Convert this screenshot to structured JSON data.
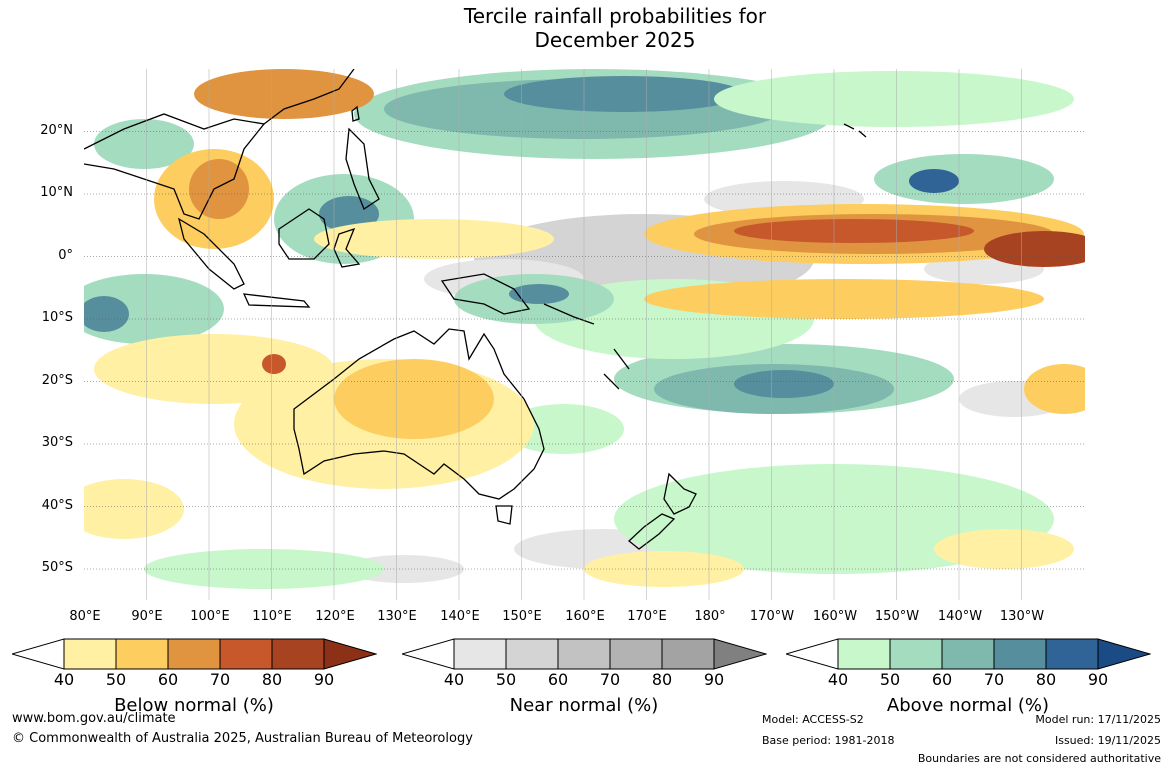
{
  "title_line1": "Tercile rainfall probabilities for",
  "title_line2": "December 2025",
  "lat_labels": [
    "20°N",
    "10°N",
    "0°",
    "10°S",
    "20°S",
    "30°S",
    "40°S",
    "50°S"
  ],
  "lon_labels": [
    "80°E",
    "90°E",
    "100°E",
    "110°E",
    "120°E",
    "130°E",
    "140°E",
    "150°E",
    "160°E",
    "170°E",
    "180°",
    "170°W",
    "160°W",
    "150°W",
    "140°W",
    "130°W"
  ],
  "colorbars": [
    {
      "title": "Below normal (%)",
      "ticks": [
        "40",
        "50",
        "60",
        "70",
        "80",
        "90"
      ],
      "colors": [
        "#fff0a3",
        "#fdcd60",
        "#e0943f",
        "#c6582c",
        "#a84321",
        "#8c3118"
      ]
    },
    {
      "title": "Near normal (%)",
      "ticks": [
        "40",
        "50",
        "60",
        "70",
        "80",
        "90"
      ],
      "colors": [
        "#e6e6e6",
        "#d4d4d4",
        "#c2c2c2",
        "#b3b3b3",
        "#a3a3a3",
        "#808080"
      ]
    },
    {
      "title": "Above normal (%)",
      "ticks": [
        "40",
        "50",
        "60",
        "70",
        "80",
        "90"
      ],
      "colors": [
        "#c8f7cb",
        "#a4dcc0",
        "#7fb9ad",
        "#568e9d",
        "#306396",
        "#1a4b85"
      ]
    }
  ],
  "footer": {
    "website": "www.bom.gov.au/climate",
    "copyright": "© Commonwealth of Australia 2025, Australian Bureau of Meteorology",
    "model": "Model: ACCESS-S2",
    "base_period": "Base period: 1981-2018",
    "model_run": "Model run: 17/11/2025",
    "issued": "Issued: 19/11/2025",
    "disclaimer": "Boundaries are not considered authoritative"
  },
  "map_regions": [
    {
      "name": "above-normal-north-pacific",
      "tercile": "above",
      "level": 80
    },
    {
      "name": "above-normal-south-pacific-convergence",
      "tercile": "above",
      "level": 80
    },
    {
      "name": "above-normal-maritime-continent",
      "tercile": "above",
      "level": 70
    },
    {
      "name": "above-normal-east-indian-ocean",
      "tercile": "above",
      "level": 80
    },
    {
      "name": "below-normal-equatorial-pacific",
      "tercile": "below",
      "level": 80
    },
    {
      "name": "below-normal-indochina",
      "tercile": "below",
      "level": 70
    },
    {
      "name": "below-normal-australia",
      "tercile": "below",
      "level": 60
    },
    {
      "name": "near-normal-equatorial-pacific",
      "tercile": "near",
      "level": 50
    }
  ]
}
